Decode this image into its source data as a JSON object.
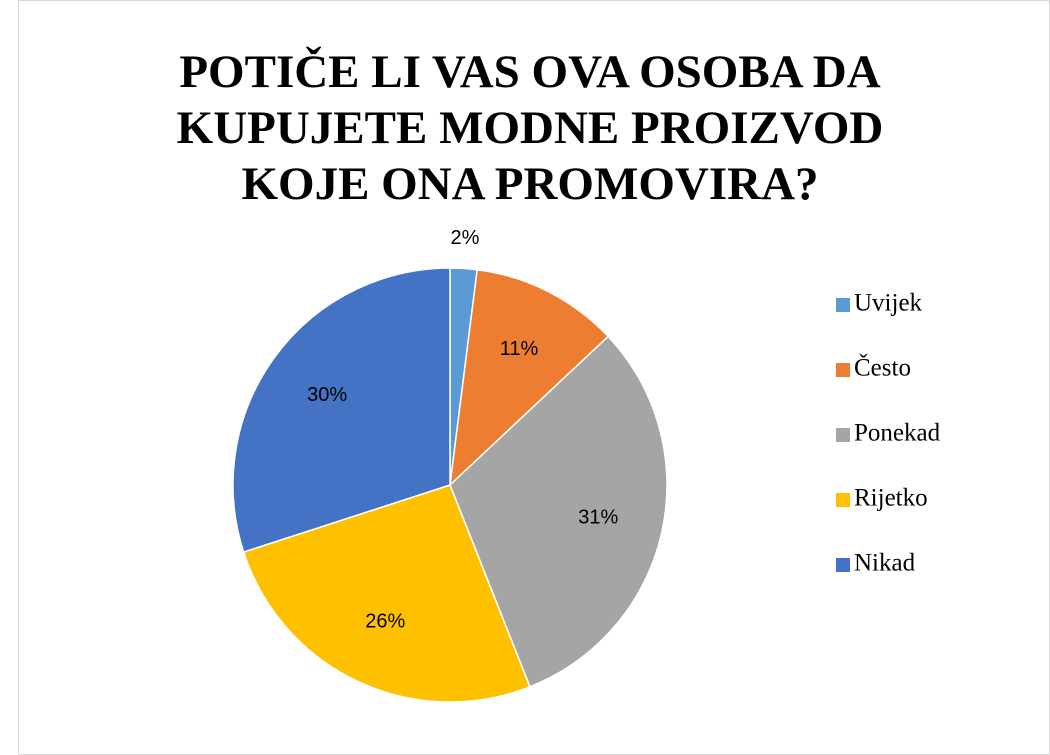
{
  "chart_data": {
    "type": "pie",
    "title": "POTIČE LI VAS OVA OSOBA DA KUPUJETE MODNE PROIZVOD KOJE ONA PROMOVIRA?",
    "categories": [
      "Uvijek",
      "Često",
      "Ponekad",
      "Rijetko",
      "Nikad"
    ],
    "values": [
      2,
      11,
      31,
      26,
      30
    ],
    "value_labels": [
      "2%",
      "11%",
      "31%",
      "26%",
      "30%"
    ],
    "colors": [
      "#5b9bd5",
      "#ed7d31",
      "#a5a5a5",
      "#ffc000",
      "#4472c4"
    ],
    "legend": "right"
  }
}
